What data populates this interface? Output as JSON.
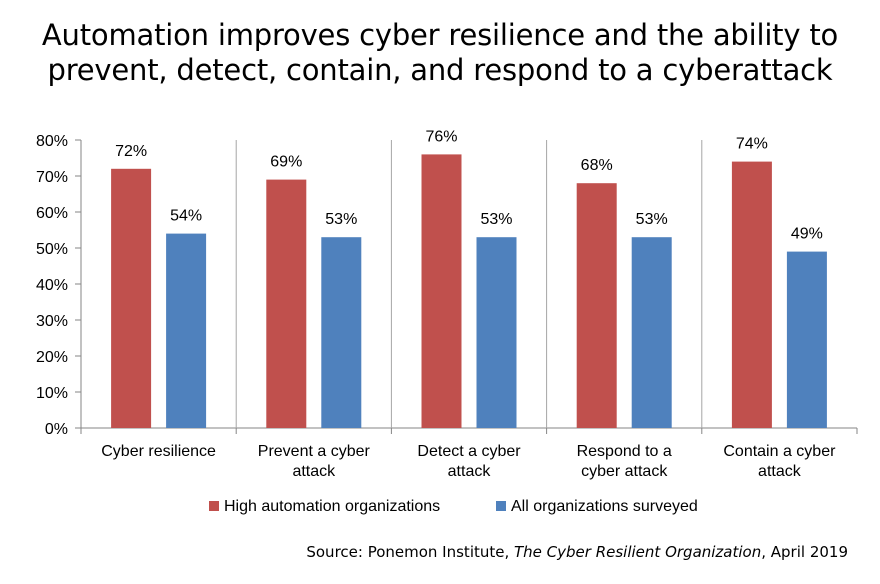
{
  "chart_data": {
    "type": "bar",
    "title_lines": [
      "Automation improves cyber resilience and the ability to",
      "prevent, detect, contain, and respond to a cyberattack"
    ],
    "categories": [
      [
        "Cyber resilience"
      ],
      [
        "Prevent a cyber",
        "attack"
      ],
      [
        "Detect a cyber",
        "attack"
      ],
      [
        "Respond to a",
        "cyber attack"
      ],
      [
        "Contain a cyber",
        "attack"
      ]
    ],
    "series": [
      {
        "name": "High automation organizations",
        "color": "#C0504D",
        "values": [
          72,
          69,
          76,
          68,
          74
        ],
        "labels": [
          "72%",
          "69%",
          "76%",
          "68%",
          "74%"
        ]
      },
      {
        "name": "All organizations surveyed",
        "color": "#4F81BD",
        "values": [
          54,
          53,
          53,
          53,
          49
        ],
        "labels": [
          "54%",
          "53%",
          "53%",
          "53%",
          "49%"
        ]
      }
    ],
    "ylim": [
      0,
      80
    ],
    "yticks": [
      0,
      10,
      20,
      30,
      40,
      50,
      60,
      70,
      80
    ],
    "ytick_labels": [
      "0%",
      "10%",
      "20%",
      "30%",
      "40%",
      "50%",
      "60%",
      "70%",
      "80%"
    ],
    "grid": false,
    "category_separators": true,
    "legend_position": "bottom"
  },
  "source": {
    "prefix": "Source: Ponemon Institute, ",
    "title": "The Cyber Resilient Organization",
    "suffix": ", April 2019"
  }
}
